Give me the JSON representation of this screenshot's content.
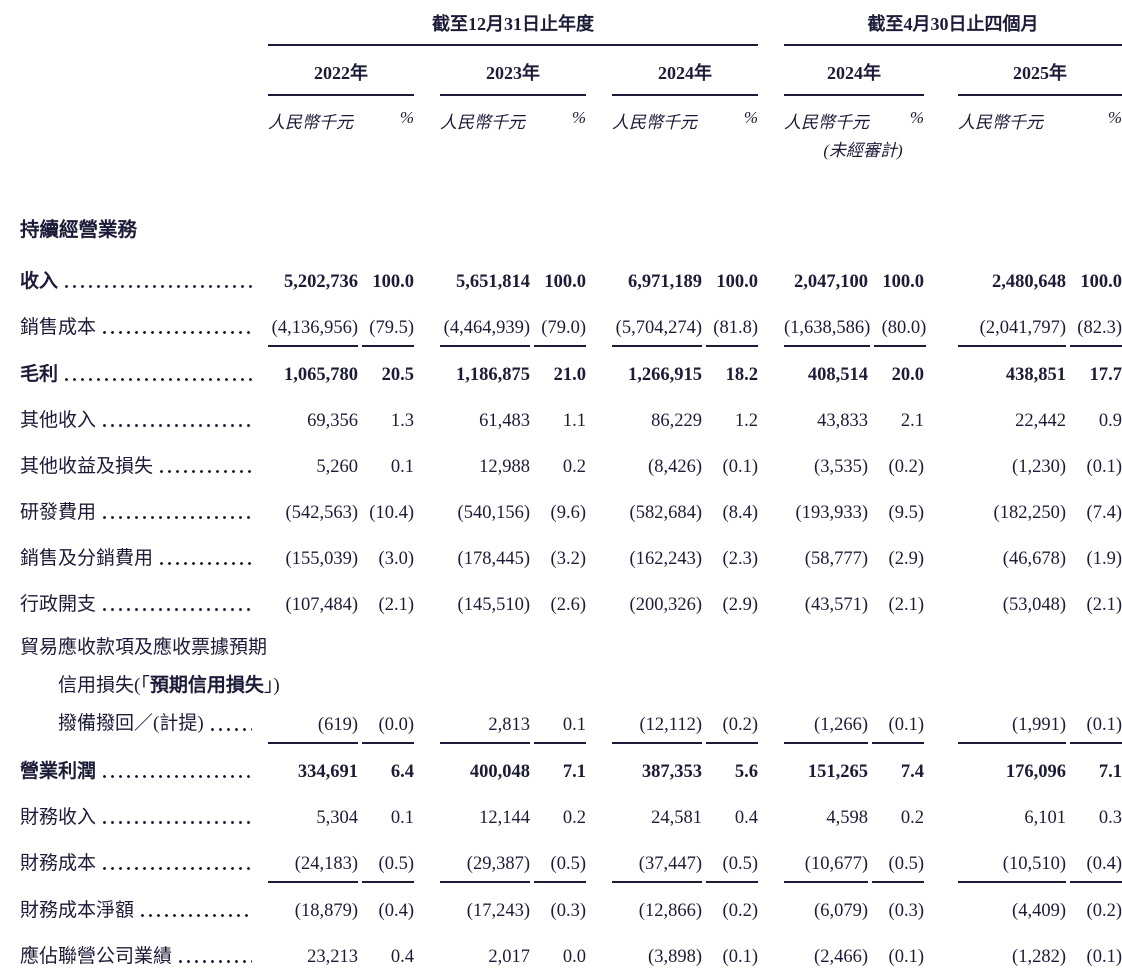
{
  "table": {
    "header": {
      "period1_title": "截至12月31日止年度",
      "period2_title": "截至4月30日止四個月",
      "years": [
        "2022年",
        "2023年",
        "2024年",
        "2024年",
        "2025年"
      ],
      "unit_label": "人民幣千元",
      "pct_label": "%",
      "unaudited_note": "(未經審計)"
    },
    "section_title": "持續經營業務",
    "rows": [
      {
        "label": "收入",
        "bold": true,
        "values": [
          "5,202,736",
          "100.0",
          "5,651,814",
          "100.0",
          "6,971,189",
          "100.0",
          "2,047,100",
          "100.0",
          "2,480,648",
          "100.0"
        ]
      },
      {
        "label": "銷售成本",
        "underline": true,
        "values": [
          "(4,136,956)",
          "(79.5)",
          "(4,464,939)",
          "(79.0)",
          "(5,704,274)",
          "(81.8)",
          "(1,638,586)",
          "(80.0)",
          "(2,041,797)",
          "(82.3)"
        ]
      },
      {
        "label": "毛利",
        "bold": true,
        "gap_before": true,
        "values": [
          "1,065,780",
          "20.5",
          "1,186,875",
          "21.0",
          "1,266,915",
          "18.2",
          "408,514",
          "20.0",
          "438,851",
          "17.7"
        ]
      },
      {
        "label": "其他收入",
        "values": [
          "69,356",
          "1.3",
          "61,483",
          "1.1",
          "86,229",
          "1.2",
          "43,833",
          "2.1",
          "22,442",
          "0.9"
        ]
      },
      {
        "label": "其他收益及損失",
        "values": [
          "5,260",
          "0.1",
          "12,988",
          "0.2",
          "(8,426)",
          "(0.1)",
          "(3,535)",
          "(0.2)",
          "(1,230)",
          "(0.1)"
        ]
      },
      {
        "label": "研發費用",
        "values": [
          "(542,563)",
          "(10.4)",
          "(540,156)",
          "(9.6)",
          "(582,684)",
          "(8.4)",
          "(193,933)",
          "(9.5)",
          "(182,250)",
          "(7.4)"
        ]
      },
      {
        "label": "銷售及分銷費用",
        "values": [
          "(155,039)",
          "(3.0)",
          "(178,445)",
          "(3.2)",
          "(162,243)",
          "(2.3)",
          "(58,777)",
          "(2.9)",
          "(46,678)",
          "(1.9)"
        ]
      },
      {
        "label": "行政開支",
        "values": [
          "(107,484)",
          "(2.1)",
          "(145,510)",
          "(2.6)",
          "(200,326)",
          "(2.9)",
          "(43,571)",
          "(2.1)",
          "(53,048)",
          "(2.1)"
        ]
      },
      {
        "multiline": true,
        "underline": true,
        "label_lines": [
          {
            "parts": [
              {
                "t": "貿易應收款項及應收票據預期"
              }
            ]
          },
          {
            "indent": true,
            "parts": [
              {
                "t": "信用損失(「"
              },
              {
                "t": "預期信用損失",
                "b": true
              },
              {
                "t": "」)"
              }
            ]
          },
          {
            "indent": true,
            "leader": true,
            "parts": [
              {
                "t": "撥備撥回／(計提)"
              }
            ]
          }
        ],
        "values": [
          "(619)",
          "(0.0)",
          "2,813",
          "0.1",
          "(12,112)",
          "(0.2)",
          "(1,266)",
          "(0.1)",
          "(1,991)",
          "(0.1)"
        ]
      },
      {
        "label": "營業利潤",
        "bold": true,
        "gap_before": true,
        "values": [
          "334,691",
          "6.4",
          "400,048",
          "7.1",
          "387,353",
          "5.6",
          "151,265",
          "7.4",
          "176,096",
          "7.1"
        ]
      },
      {
        "label": "財務收入",
        "values": [
          "5,304",
          "0.1",
          "12,144",
          "0.2",
          "24,581",
          "0.4",
          "4,598",
          "0.2",
          "6,101",
          "0.3"
        ]
      },
      {
        "label": "財務成本",
        "underline": true,
        "values": [
          "(24,183)",
          "(0.5)",
          "(29,387)",
          "(0.5)",
          "(37,447)",
          "(0.5)",
          "(10,677)",
          "(0.5)",
          "(10,510)",
          "(0.4)"
        ]
      },
      {
        "label": "財務成本淨額",
        "gap_before": true,
        "values": [
          "(18,879)",
          "(0.4)",
          "(17,243)",
          "(0.3)",
          "(12,866)",
          "(0.2)",
          "(6,079)",
          "(0.3)",
          "(4,409)",
          "(0.2)"
        ]
      },
      {
        "label": "應佔聯營公司業績",
        "underline": true,
        "values": [
          "23,213",
          "0.4",
          "2,017",
          "0.0",
          "(3,898)",
          "(0.1)",
          "(2,466)",
          "(0.1)",
          "(1,282)",
          "(0.1)"
        ]
      }
    ]
  }
}
